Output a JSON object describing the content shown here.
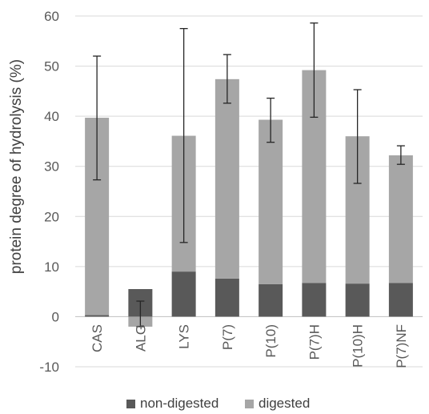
{
  "chart_data": {
    "type": "bar",
    "stacked": true,
    "title": "",
    "xlabel": "",
    "ylabel": "protein degree of hydrolysis (%)",
    "ylim": [
      -10,
      60
    ],
    "yticks": [
      -10,
      0,
      10,
      20,
      30,
      40,
      50,
      60
    ],
    "grid": true,
    "legend_position": "bottom",
    "categories": [
      "CAS",
      "ALG",
      "LYS",
      "P(7)",
      "P(10)",
      "P(7)H",
      "P(10)H",
      "P(7)NF"
    ],
    "series": [
      {
        "name": "non-digested",
        "color": "#595959",
        "values": [
          0.3,
          5.5,
          9.0,
          7.6,
          6.5,
          6.7,
          6.6,
          6.7
        ]
      },
      {
        "name": "digested",
        "color": "#a6a6a6",
        "values": [
          39.4,
          -2.0,
          27.1,
          39.8,
          32.8,
          42.5,
          29.4,
          25.5
        ]
      }
    ],
    "totals": [
      39.7,
      5.5,
      36.1,
      47.4,
      39.3,
      49.2,
      36.0,
      32.2
    ],
    "error_bars": [
      {
        "center": 39.7,
        "low": 27.3,
        "high": 52.0
      },
      {
        "center": 0.0,
        "low": -2.0,
        "high": 3.1
      },
      {
        "center": 36.1,
        "low": 14.8,
        "high": 57.5
      },
      {
        "center": 47.4,
        "low": 42.6,
        "high": 52.3
      },
      {
        "center": 39.3,
        "low": 34.8,
        "high": 43.6
      },
      {
        "center": 49.2,
        "low": 39.8,
        "high": 58.6
      },
      {
        "center": 36.0,
        "low": 26.6,
        "high": 45.3
      },
      {
        "center": 32.2,
        "low": 30.4,
        "high": 34.1
      }
    ]
  }
}
